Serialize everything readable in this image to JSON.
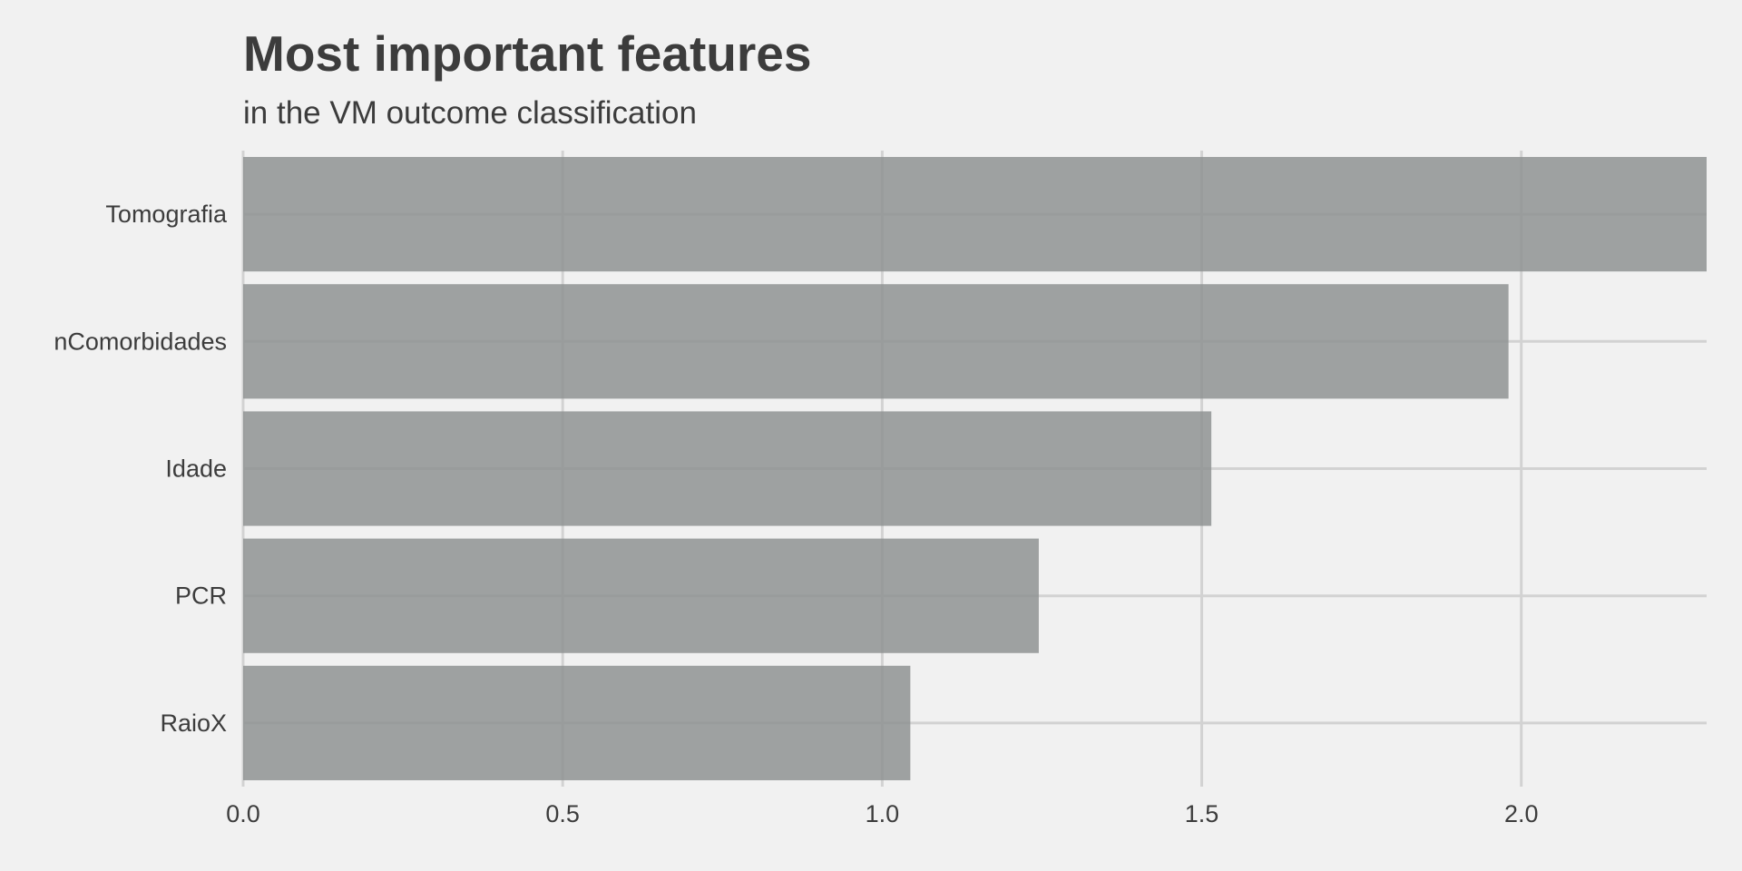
{
  "chart_data": {
    "type": "bar",
    "orientation": "horizontal",
    "title": "Most important features",
    "subtitle": "in the VM outcome classification",
    "xlabel": "",
    "ylabel": "",
    "categories": [
      "Tomografia",
      "nComorbidades",
      "Idade",
      "PCR",
      "RaioX"
    ],
    "values": [
      2.29,
      1.98,
      1.515,
      1.245,
      1.044
    ],
    "xlim": [
      0,
      2.29
    ],
    "x_ticks": [
      0.0,
      0.5,
      1.0,
      1.5,
      2.0
    ],
    "x_tick_labels": [
      "0.0",
      "0.5",
      "1.0",
      "1.5",
      "2.0"
    ],
    "grid": true,
    "legend": "none",
    "colors": {
      "background": "#f1f1f1",
      "bar": "#8f9393",
      "grid": "#d2d2d2",
      "text": "#3c3c3c"
    }
  }
}
